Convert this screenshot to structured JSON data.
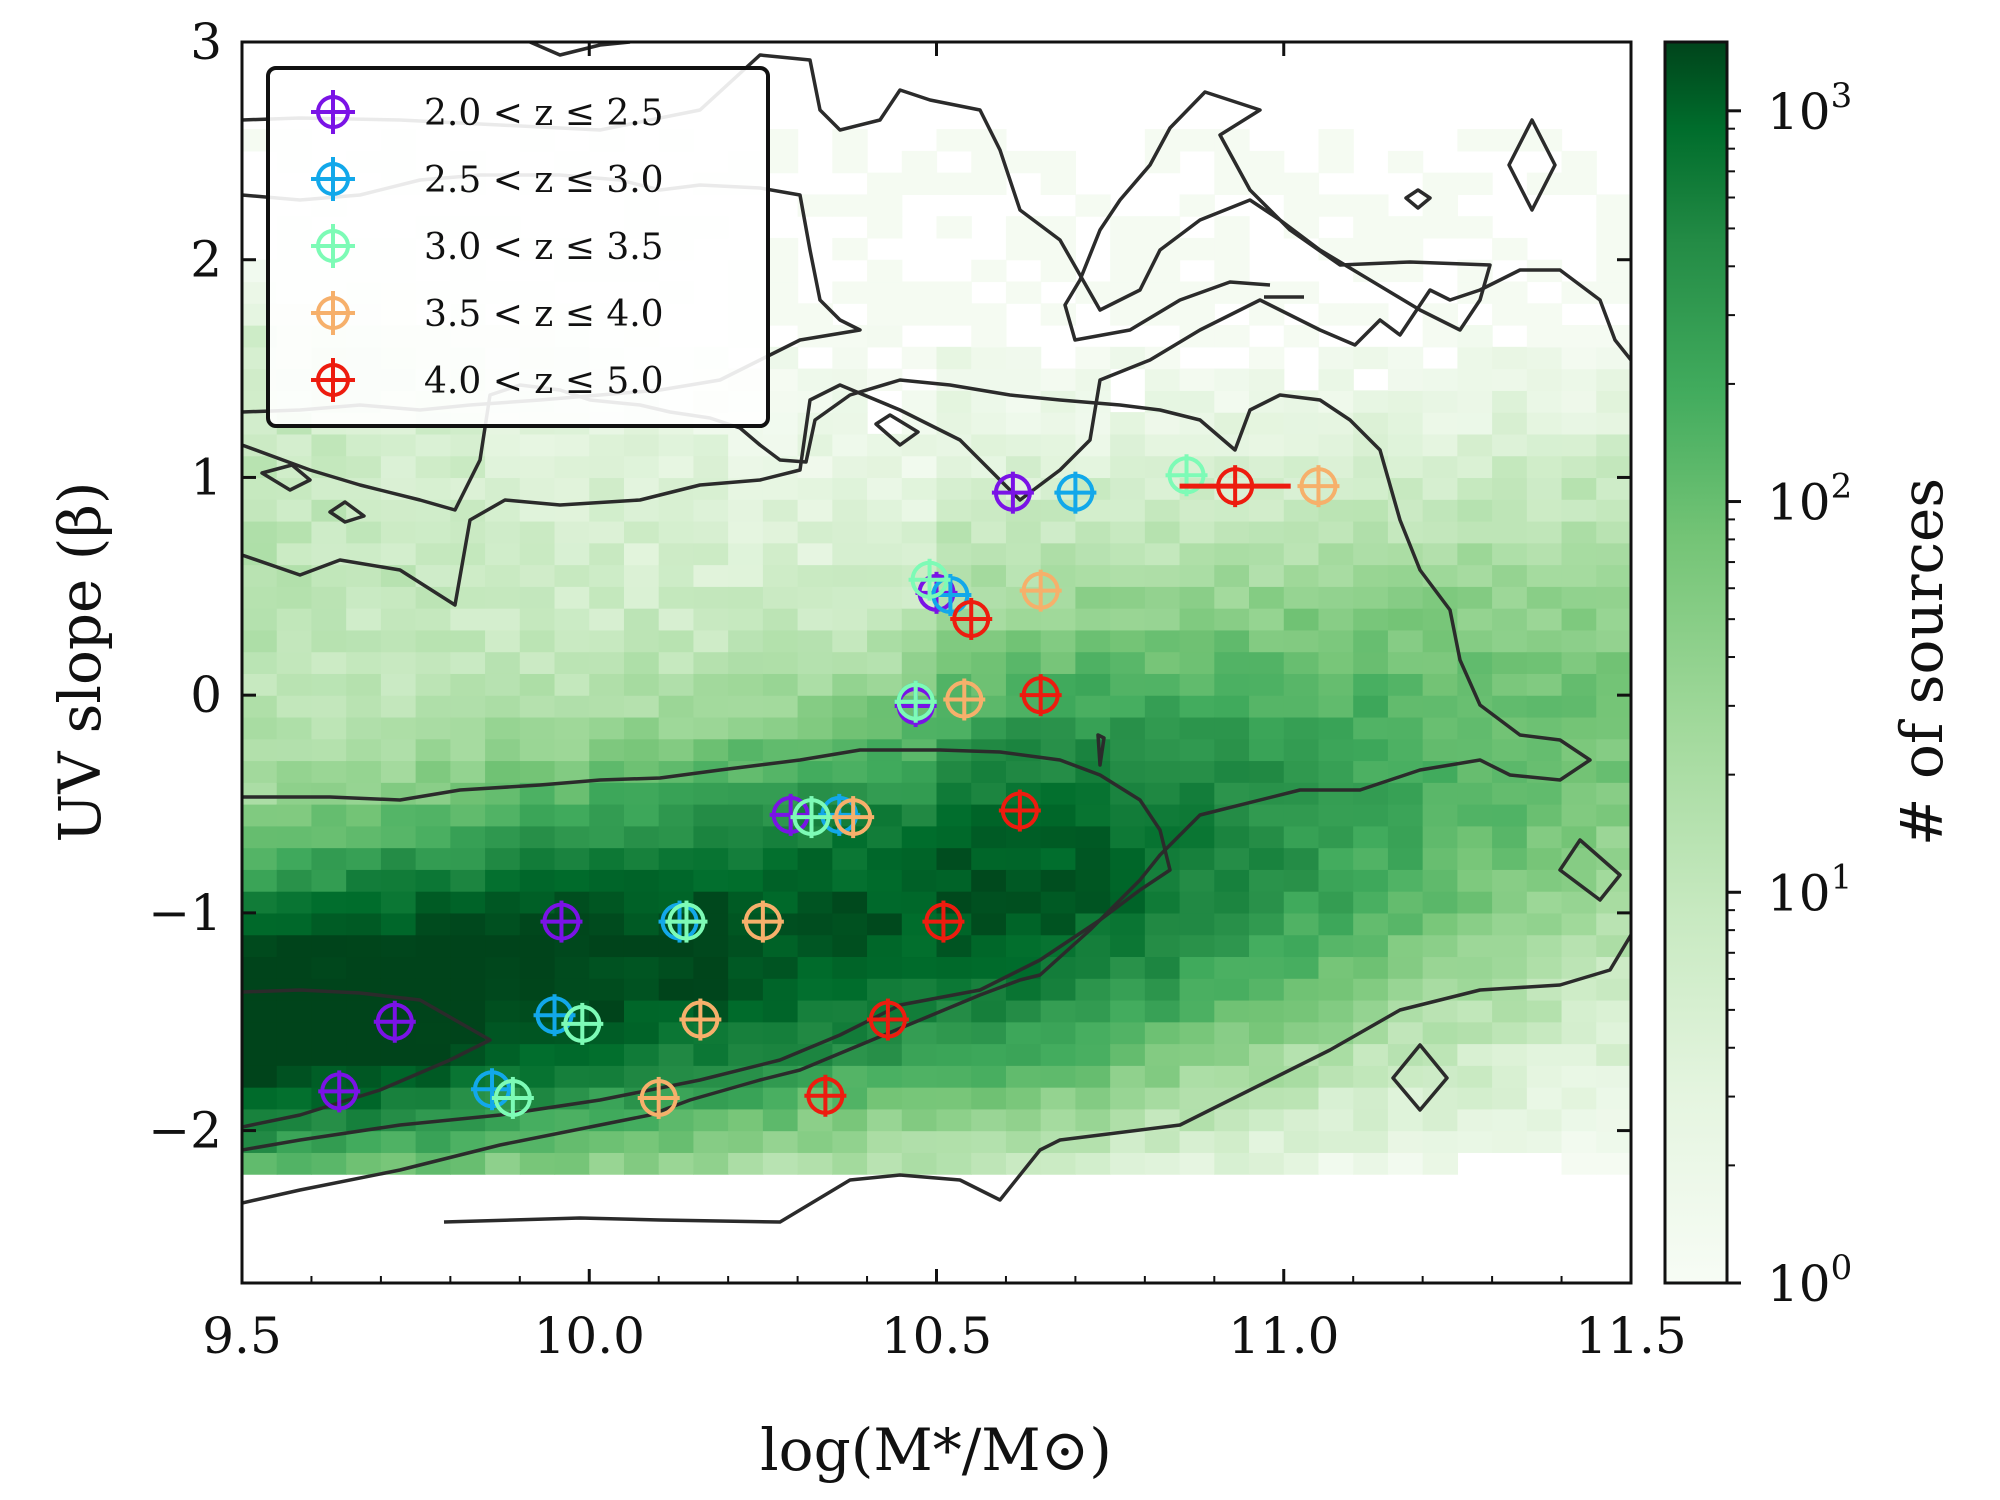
{
  "chart_data": {
    "type": "scatter",
    "xlabel": "log(M*/M⊙)",
    "ylabel": "UV slope (β)",
    "xlim": [
      9.5,
      11.5
    ],
    "ylim": [
      -2.7,
      3.0
    ],
    "x_ticks": [
      9.5,
      10.0,
      10.5,
      11.0,
      11.5
    ],
    "x_tick_labels": [
      "9.5",
      "10.0",
      "10.5",
      "11.0",
      "11.5"
    ],
    "y_ticks": [
      -2,
      -1,
      0,
      1,
      2,
      3
    ],
    "y_tick_labels": [
      "−2",
      "−1",
      "0",
      "1",
      "2",
      "3"
    ],
    "legend_position": "top-left",
    "background": {
      "type": "heatmap",
      "colormap": "Greens (log scale)",
      "colorbar_label": "# of sources",
      "colorbar_ticks": [
        "10^0",
        "10^1",
        "10^2",
        "10^3"
      ],
      "colorbar_range": [
        1,
        1500
      ]
    },
    "series": [
      {
        "name": "2.0 < z ≤ 2.5",
        "color": "#7a13e6",
        "points": [
          {
            "x": 9.64,
            "y": -1.82
          },
          {
            "x": 9.72,
            "y": -1.5
          },
          {
            "x": 9.96,
            "y": -1.04
          },
          {
            "x": 10.29,
            "y": -0.55
          },
          {
            "x": 10.47,
            "y": -0.05
          },
          {
            "x": 10.5,
            "y": 0.47
          },
          {
            "x": 10.61,
            "y": 0.93
          }
        ]
      },
      {
        "name": "2.5 < z ≤ 3.0",
        "color": "#12a8ea",
        "points": [
          {
            "x": 9.86,
            "y": -1.81
          },
          {
            "x": 9.95,
            "y": -1.47
          },
          {
            "x": 10.13,
            "y": -1.04
          },
          {
            "x": 10.36,
            "y": -0.55
          },
          {
            "x": 10.47,
            "y": -0.03
          },
          {
            "x": 10.52,
            "y": 0.46
          },
          {
            "x": 10.7,
            "y": 0.93
          }
        ]
      },
      {
        "name": "3.0 < z ≤ 3.5",
        "color": "#7dfbb6",
        "points": [
          {
            "x": 9.89,
            "y": -1.85
          },
          {
            "x": 9.99,
            "y": -1.51
          },
          {
            "x": 10.14,
            "y": -1.04
          },
          {
            "x": 10.32,
            "y": -0.56
          },
          {
            "x": 10.47,
            "y": -0.03
          },
          {
            "x": 10.49,
            "y": 0.53
          },
          {
            "x": 10.86,
            "y": 1.01
          }
        ]
      },
      {
        "name": "3.5 < z ≤ 4.0",
        "color": "#f6b06b",
        "points": [
          {
            "x": 10.1,
            "y": -1.85
          },
          {
            "x": 10.16,
            "y": -1.49
          },
          {
            "x": 10.25,
            "y": -1.04
          },
          {
            "x": 10.38,
            "y": -0.56
          },
          {
            "x": 10.54,
            "y": -0.02
          },
          {
            "x": 10.65,
            "y": 0.48
          },
          {
            "x": 11.05,
            "y": 0.96
          }
        ]
      },
      {
        "name": "4.0 < z ≤ 5.0",
        "color": "#ed1c0f",
        "points": [
          {
            "x": 10.34,
            "y": -1.84
          },
          {
            "x": 10.43,
            "y": -1.49
          },
          {
            "x": 10.51,
            "y": -1.04
          },
          {
            "x": 10.62,
            "y": -0.53
          },
          {
            "x": 10.65,
            "y": 0.0
          },
          {
            "x": 10.55,
            "y": 0.35
          },
          {
            "x": 10.93,
            "y": 0.96
          }
        ]
      }
    ]
  }
}
